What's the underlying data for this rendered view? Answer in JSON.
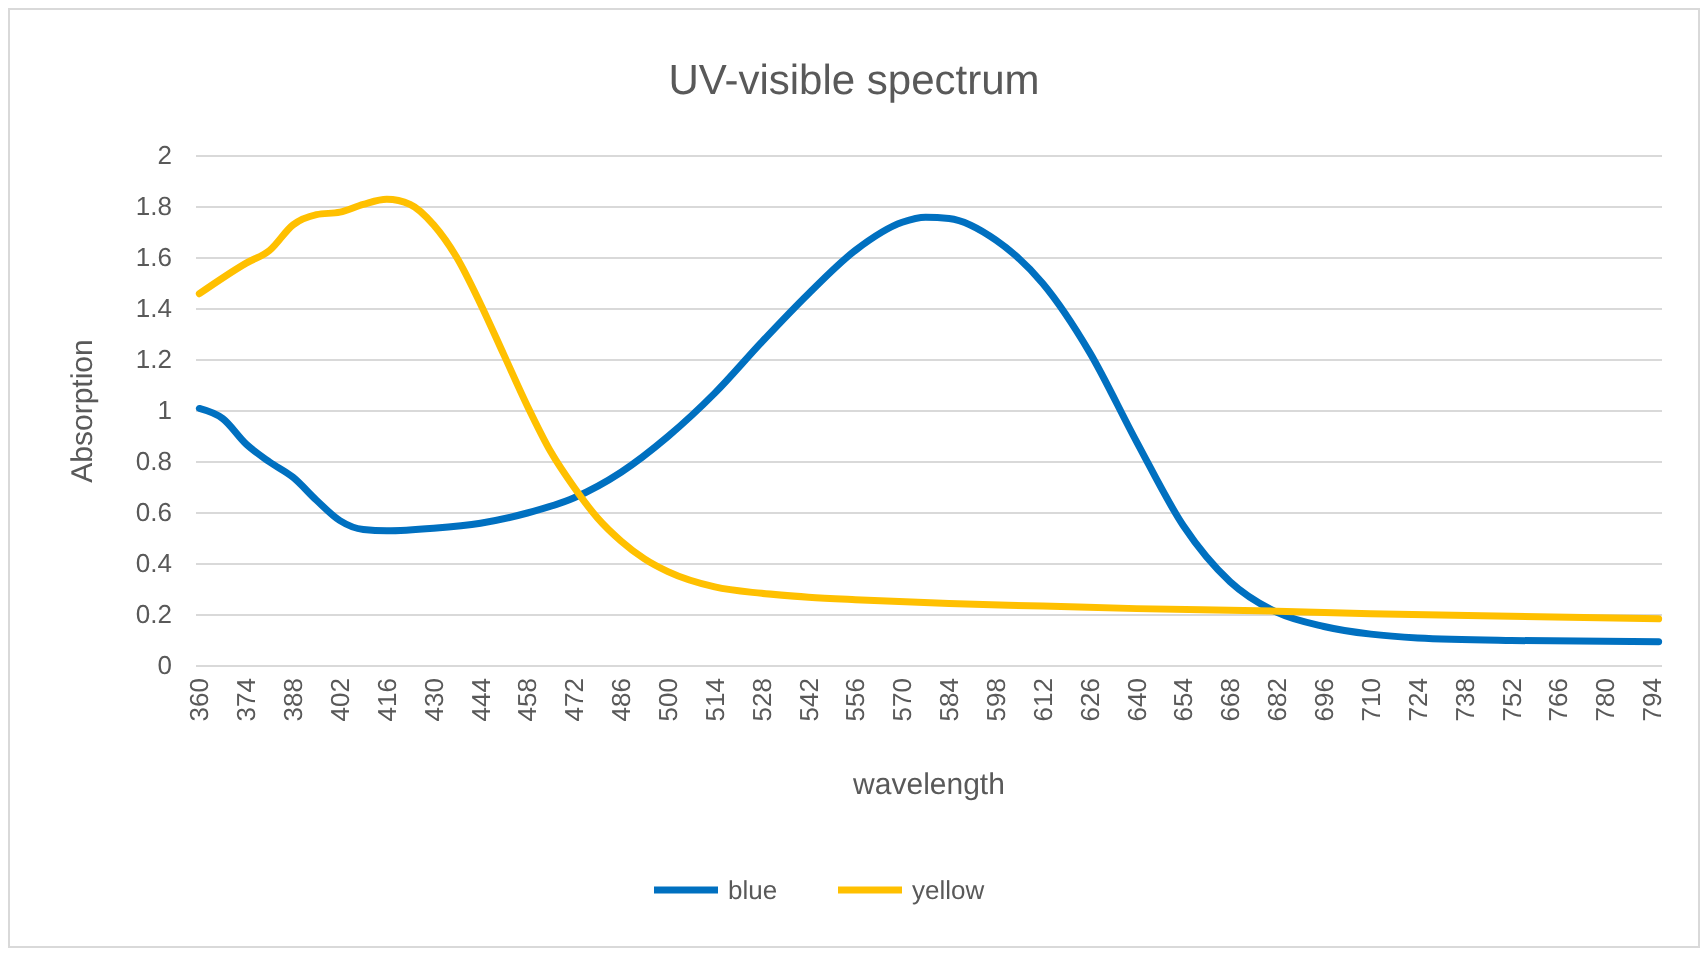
{
  "chart_data": {
    "type": "line",
    "title": "UV-visible spectrum",
    "xlabel": "wavelength",
    "ylabel": "Absorption",
    "xlim": [
      359,
      797
    ],
    "xticks": [
      360,
      374,
      388,
      402,
      416,
      430,
      444,
      458,
      472,
      486,
      500,
      514,
      528,
      542,
      556,
      570,
      584,
      598,
      612,
      626,
      640,
      654,
      668,
      682,
      696,
      710,
      724,
      738,
      752,
      766,
      780,
      794
    ],
    "ylim": [
      0,
      2
    ],
    "yticks": [
      0,
      0.2,
      0.4,
      0.6,
      0.8,
      1,
      1.2,
      1.4,
      1.6,
      1.8,
      2
    ],
    "grid": "y",
    "legend": "bottom",
    "marker": "none",
    "line_style": "solid",
    "series": [
      {
        "name": "blue",
        "color": "#0070c0",
        "x": [
          360,
          367,
          374,
          381,
          388,
          395,
          402,
          409,
          416,
          430,
          444,
          458,
          472,
          486,
          500,
          514,
          528,
          542,
          556,
          570,
          577,
          584,
          598,
          612,
          626,
          640,
          654,
          668,
          682,
          696,
          710,
          724,
          752,
          796
        ],
        "values": [
          1.01,
          0.97,
          0.87,
          0.8,
          0.74,
          0.65,
          0.57,
          0.535,
          0.53,
          0.54,
          0.56,
          0.6,
          0.66,
          0.76,
          0.9,
          1.07,
          1.27,
          1.46,
          1.63,
          1.74,
          1.76,
          1.755,
          1.67,
          1.5,
          1.23,
          0.88,
          0.55,
          0.33,
          0.21,
          0.155,
          0.125,
          0.11,
          0.1,
          0.095
        ]
      },
      {
        "name": "yellow",
        "color": "#ffc000",
        "x": [
          360,
          374,
          381,
          388,
          395,
          402,
          409,
          416,
          423,
          430,
          437,
          444,
          451,
          458,
          465,
          472,
          479,
          486,
          493,
          500,
          514,
          528,
          542,
          556,
          584,
          612,
          640,
          682,
          710,
          752,
          796
        ],
        "values": [
          1.46,
          1.58,
          1.63,
          1.73,
          1.77,
          1.78,
          1.81,
          1.83,
          1.81,
          1.73,
          1.6,
          1.42,
          1.22,
          1.02,
          0.84,
          0.7,
          0.58,
          0.49,
          0.42,
          0.37,
          0.31,
          0.285,
          0.27,
          0.26,
          0.245,
          0.235,
          0.225,
          0.215,
          0.205,
          0.195,
          0.185
        ]
      }
    ]
  }
}
